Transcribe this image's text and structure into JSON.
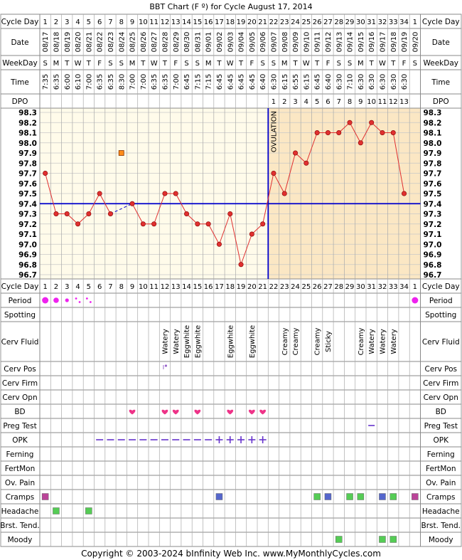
{
  "title": "BBT Chart (F º) for Cycle August 17, 2014",
  "copyright": "Copyright © 2003-2024 bInfinity Web Inc.     www.MyMonthlyCycles.com",
  "row_labels": {
    "cycle_day": "Cycle Day",
    "date": "Date",
    "weekday": "WeekDay",
    "time": "Time",
    "dpo": "DPO",
    "period": "Period",
    "spotting": "Spotting",
    "cerv_fluid": "Cerv Fluid",
    "cerv_pos": "Cerv Pos",
    "cerv_firm": "Cerv Firm",
    "cerv_opn": "Cerv Opn",
    "bd": "BD",
    "preg_test": "Preg Test",
    "opk": "OPK",
    "ferning": "Ferning",
    "fertmon": "FertMon",
    "ov_pain": "Ov. Pain",
    "cramps": "Cramps",
    "headache": "Headache",
    "brst_tend": "Brst. Tend.",
    "moody": "Moody"
  },
  "ovulation_label": "OVULATION",
  "colors": {
    "temp_line": "#e03030",
    "coverline": "#0000cc",
    "ovulation_line": "#0000cc",
    "pre_ov_bg": "#fffbea",
    "post_ov_bg": "#fbe7c4",
    "grid": "#c8c8c8",
    "period": "#ee22ee",
    "bd_heart": "#ee3388",
    "opk": "#6633cc",
    "preg": "#6633cc",
    "cramps_a": "#bb4499",
    "cramps_b": "#5566cc",
    "green": "#55cc55"
  },
  "chart_data": {
    "type": "line",
    "title": "BBT Chart (F º) for Cycle August 17, 2014",
    "cycle_days": [
      "1",
      "2",
      "3",
      "4",
      "5",
      "6",
      "7",
      "8",
      "9",
      "10",
      "11",
      "12",
      "13",
      "14",
      "15",
      "16",
      "17",
      "18",
      "19",
      "20",
      "21",
      "22",
      "23",
      "24",
      "25",
      "26",
      "27",
      "28",
      "29",
      "30",
      "31",
      "32",
      "33",
      "34",
      "1"
    ],
    "dates": [
      "08/17",
      "08/18",
      "08/19",
      "08/20",
      "08/21",
      "08/22",
      "08/23",
      "08/24",
      "08/25",
      "08/26",
      "08/27",
      "08/28",
      "08/29",
      "08/30",
      "08/31",
      "09/01",
      "09/02",
      "09/03",
      "09/04",
      "09/05",
      "09/06",
      "09/07",
      "09/08",
      "09/09",
      "09/10",
      "09/11",
      "09/12",
      "09/13",
      "09/14",
      "09/15",
      "09/16",
      "09/17",
      "09/18",
      "09/19",
      "09/20"
    ],
    "weekdays": [
      "S",
      "M",
      "T",
      "W",
      "T",
      "F",
      "S",
      "S",
      "M",
      "T",
      "W",
      "T",
      "F",
      "S",
      "S",
      "M",
      "T",
      "W",
      "T",
      "F",
      "S",
      "S",
      "M",
      "T",
      "W",
      "T",
      "F",
      "S",
      "S",
      "M",
      "T",
      "W",
      "T",
      "F",
      "S"
    ],
    "times": [
      "7:35",
      "6:35",
      "6:00",
      "6:10",
      "7:00",
      "6:35",
      "6:35",
      "8:30",
      "7:00",
      "7:00",
      "6:35",
      "6:35",
      "7:00",
      "6:45",
      "7:15",
      "7:15",
      "6:45",
      "6:45",
      "6:45",
      "6:45",
      "6:40",
      "6:30",
      "6:15",
      "6:55",
      "6:15",
      "6:45",
      "6:40",
      "6:30",
      "7:10",
      "6:30",
      "6:30",
      "6:30",
      "6:30",
      "6:30",
      ""
    ],
    "dpo": [
      "",
      "",
      "",
      "",
      "",
      "",
      "",
      "",
      "",
      "",
      "",
      "",
      "",
      "",
      "",
      "",
      "",
      "",
      "",
      "",
      "",
      "1",
      "2",
      "3",
      "4",
      "5",
      "6",
      "7",
      "8",
      "9",
      "10",
      "11",
      "12",
      "13",
      ""
    ],
    "y_ticks": [
      "98.3",
      "98.2",
      "98.1",
      "98.0",
      "97.9",
      "97.8",
      "97.7",
      "97.6",
      "97.5",
      "97.4",
      "97.3",
      "97.2",
      "97.1",
      "97.0",
      "96.9",
      "96.8",
      "96.7"
    ],
    "ylim": [
      96.7,
      98.3
    ],
    "temps": [
      97.7,
      97.3,
      97.3,
      97.2,
      97.3,
      97.5,
      97.3,
      null,
      97.4,
      97.2,
      97.2,
      97.5,
      97.5,
      97.3,
      97.2,
      97.2,
      97.0,
      97.3,
      96.8,
      97.1,
      97.2,
      97.7,
      97.5,
      97.9,
      97.8,
      98.1,
      98.1,
      98.1,
      98.2,
      98.0,
      98.2,
      98.1,
      98.1,
      97.5,
      null
    ],
    "discarded": [
      {
        "day_index": 7,
        "value": 97.9
      }
    ],
    "coverline": 97.4,
    "ovulation_after_day_index": 20,
    "cerv_fluid": [
      "",
      "",
      "",
      "",
      "",
      "",
      "",
      "",
      "",
      "",
      "",
      "Watery",
      "Watery",
      "Eggwhite",
      "Eggwhite",
      "",
      "",
      "Eggwhite",
      "",
      "Eggwhite",
      "",
      "",
      "Creamy",
      "Creamy",
      "",
      "Creamy",
      "Sticky",
      "",
      "",
      "Creamy",
      "Watery",
      "Watery",
      "Watery",
      "",
      ""
    ],
    "period": [
      "heavy",
      "medium",
      "light",
      "spot",
      "spot",
      "",
      "",
      "",
      "",
      "",
      "",
      "",
      "",
      "",
      "",
      "",
      "",
      "",
      "",
      "",
      "",
      "",
      "",
      "",
      "",
      "",
      "",
      "",
      "",
      "",
      "",
      "",
      "",
      "",
      "heavy"
    ],
    "cerv_pos": [
      11
    ],
    "bd": [
      8,
      11,
      12,
      14,
      17,
      19,
      20
    ],
    "preg_test": [
      30
    ],
    "opk": [
      "",
      "",
      "",
      "",
      "",
      "neg",
      "neg",
      "neg",
      "neg",
      "neg",
      "neg",
      "neg",
      "neg",
      "neg",
      "neg",
      "neg",
      "pos",
      "pos",
      "pos",
      "pos",
      "pos",
      "",
      "",
      "",
      "",
      "",
      "",
      "",
      "",
      "",
      "",
      "",
      "",
      "",
      ""
    ],
    "cramps": [
      {
        "i": 0,
        "c": "a"
      },
      {
        "i": 16,
        "c": "b"
      },
      {
        "i": 25,
        "c": "g"
      },
      {
        "i": 26,
        "c": "b"
      },
      {
        "i": 28,
        "c": "g"
      },
      {
        "i": 29,
        "c": "g"
      },
      {
        "i": 31,
        "c": "b"
      },
      {
        "i": 32,
        "c": "g"
      },
      {
        "i": 34,
        "c": "a"
      }
    ],
    "headache": [
      1,
      4
    ],
    "moody": [
      27,
      31,
      32
    ]
  }
}
